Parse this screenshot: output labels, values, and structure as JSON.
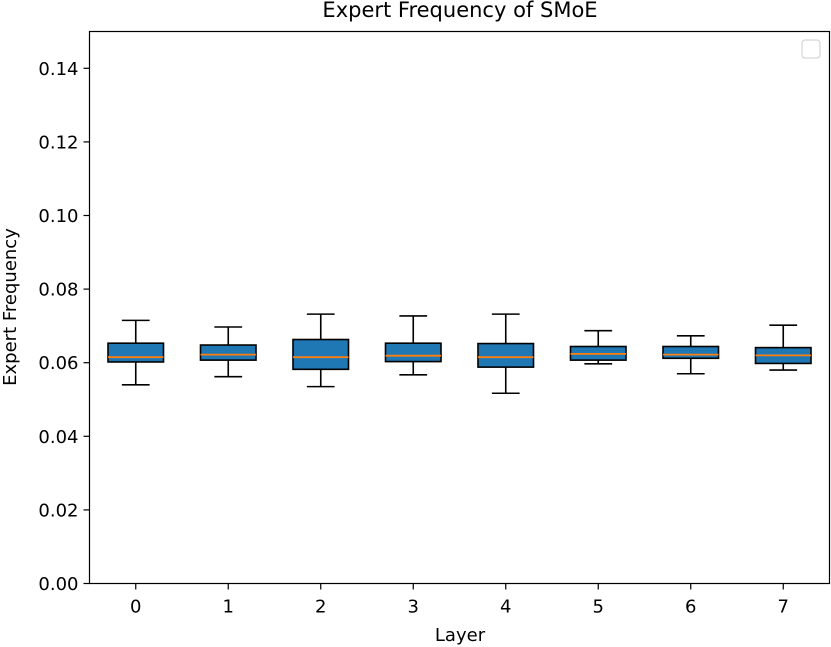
{
  "chart_data": {
    "type": "box",
    "title": "Expert Frequency of SMoE",
    "xlabel": "Layer",
    "ylabel": "Expert Frequency",
    "categories": [
      "0",
      "1",
      "2",
      "3",
      "4",
      "5",
      "6",
      "7"
    ],
    "boxes": [
      {
        "whisker_low": 0.054,
        "q1": 0.0602,
        "median": 0.0615,
        "q3": 0.0653,
        "whisker_high": 0.0715
      },
      {
        "whisker_low": 0.0562,
        "q1": 0.0607,
        "median": 0.0622,
        "q3": 0.0648,
        "whisker_high": 0.0697
      },
      {
        "whisker_low": 0.0535,
        "q1": 0.0582,
        "median": 0.0615,
        "q3": 0.0663,
        "whisker_high": 0.0732
      },
      {
        "whisker_low": 0.0567,
        "q1": 0.0603,
        "median": 0.0619,
        "q3": 0.0653,
        "whisker_high": 0.0727
      },
      {
        "whisker_low": 0.0517,
        "q1": 0.0588,
        "median": 0.0615,
        "q3": 0.0652,
        "whisker_high": 0.0732
      },
      {
        "whisker_low": 0.0597,
        "q1": 0.0607,
        "median": 0.0624,
        "q3": 0.0644,
        "whisker_high": 0.0687
      },
      {
        "whisker_low": 0.057,
        "q1": 0.0612,
        "median": 0.0622,
        "q3": 0.0644,
        "whisker_high": 0.0673
      },
      {
        "whisker_low": 0.058,
        "q1": 0.0598,
        "median": 0.062,
        "q3": 0.0641,
        "whisker_high": 0.0702
      }
    ],
    "ylim": [
      0.0,
      0.15
    ],
    "yticks": [
      "0.00",
      "0.02",
      "0.04",
      "0.06",
      "0.08",
      "0.10",
      "0.12",
      "0.14"
    ],
    "ytick_values": [
      0.0,
      0.02,
      0.04,
      0.06,
      0.08,
      0.1,
      0.12,
      0.14
    ],
    "grid": false,
    "legend": {
      "placement": "top-right",
      "entries": []
    },
    "colors": {
      "box_fill": "#1f77b4",
      "median": "#ff7f0e",
      "edge": "#000000",
      "legend_border": "#cccccc"
    }
  }
}
